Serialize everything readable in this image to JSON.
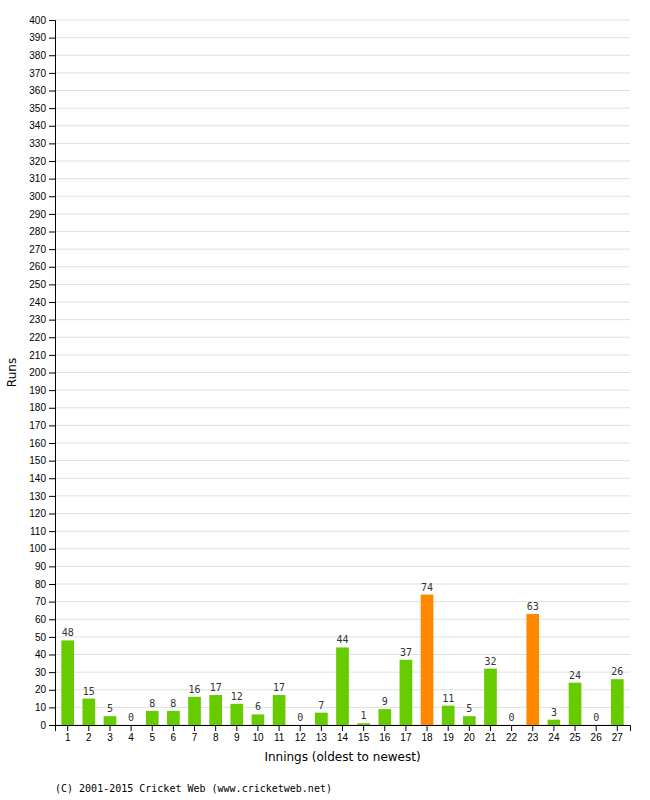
{
  "chart_data": {
    "type": "bar",
    "xlabel": "Innings (oldest to newest)",
    "ylabel": "Runs",
    "categories": [
      1,
      2,
      3,
      4,
      5,
      6,
      7,
      8,
      9,
      10,
      11,
      12,
      13,
      14,
      15,
      16,
      17,
      18,
      19,
      20,
      21,
      22,
      23,
      24,
      25,
      26,
      27
    ],
    "values": [
      48,
      15,
      5,
      0,
      8,
      8,
      16,
      17,
      12,
      6,
      17,
      0,
      7,
      44,
      1,
      9,
      37,
      74,
      11,
      5,
      32,
      0,
      63,
      3,
      24,
      0,
      26
    ],
    "colors": [
      "#66cc00",
      "#66cc00",
      "#66cc00",
      "#66cc00",
      "#66cc00",
      "#66cc00",
      "#66cc00",
      "#66cc00",
      "#66cc00",
      "#66cc00",
      "#66cc00",
      "#66cc00",
      "#66cc00",
      "#66cc00",
      "#66cc00",
      "#66cc00",
      "#66cc00",
      "#ff8800",
      "#66cc00",
      "#66cc00",
      "#66cc00",
      "#66cc00",
      "#ff8800",
      "#66cc00",
      "#66cc00",
      "#66cc00",
      "#66cc00"
    ],
    "ylim": [
      0,
      400
    ],
    "yticks": [
      0,
      10,
      20,
      30,
      40,
      50,
      60,
      70,
      80,
      90,
      100,
      110,
      120,
      130,
      140,
      150,
      160,
      170,
      180,
      190,
      200,
      210,
      220,
      230,
      240,
      250,
      260,
      270,
      280,
      290,
      300,
      310,
      320,
      330,
      340,
      350,
      360,
      370,
      380,
      390,
      400
    ],
    "grid": true,
    "data_labels": true,
    "annotations": [
      "(C) 2001-2015 Cricket Web (www.cricketweb.net)"
    ]
  }
}
